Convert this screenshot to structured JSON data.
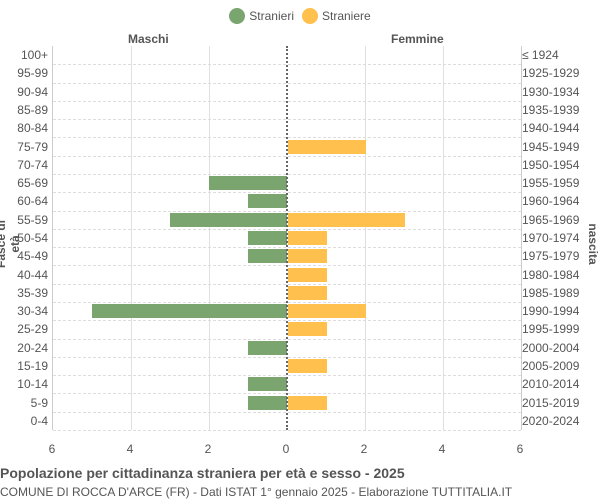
{
  "legend": [
    {
      "label": "Stranieri",
      "color": "#7ba56e"
    },
    {
      "label": "Straniere",
      "color": "#ffc04d"
    }
  ],
  "side_titles": {
    "left": "Maschi",
    "right": "Femmine"
  },
  "axis_titles": {
    "left": "Fasce di età",
    "right": "Anni di nascita"
  },
  "x_ticks": [
    "6",
    "4",
    "2",
    "0",
    "2",
    "4",
    "6"
  ],
  "footer": {
    "title": "Popolazione per cittadinanza straniera per età e sesso - 2025",
    "subtitle": "COMUNE DI ROCCA D'ARCE (FR) - Dati ISTAT 1° gennaio 2025 - Elaborazione TUTTITALIA.IT"
  },
  "chart_data": {
    "type": "bar",
    "orientation": "horizontal-pyramid",
    "title": "Popolazione per cittadinanza straniera per età e sesso - 2025",
    "subtitle": "COMUNE DI ROCCA D'ARCE (FR) - Dati ISTAT 1° gennaio 2025 - Elaborazione TUTTITALIA.IT",
    "xlabel": "",
    "ylabel_left": "Fasce di età",
    "ylabel_right": "Anni di nascita",
    "xlim": [
      -6,
      6
    ],
    "x_ticks": [
      6,
      4,
      2,
      0,
      2,
      4,
      6
    ],
    "grid": true,
    "legend_position": "top",
    "categories": [
      "100+",
      "95-99",
      "90-94",
      "85-89",
      "80-84",
      "75-79",
      "70-74",
      "65-69",
      "60-64",
      "55-59",
      "50-54",
      "45-49",
      "40-44",
      "35-39",
      "30-34",
      "25-29",
      "20-24",
      "15-19",
      "10-14",
      "5-9",
      "0-4"
    ],
    "birth_years": [
      "≤ 1924",
      "1925-1929",
      "1930-1934",
      "1935-1939",
      "1940-1944",
      "1945-1949",
      "1950-1954",
      "1955-1959",
      "1960-1964",
      "1965-1969",
      "1970-1974",
      "1975-1979",
      "1980-1984",
      "1985-1989",
      "1990-1994",
      "1995-1999",
      "2000-2004",
      "2005-2009",
      "2010-2014",
      "2015-2019",
      "2020-2024"
    ],
    "series": [
      {
        "name": "Stranieri",
        "side": "Maschi",
        "color": "#7ba56e",
        "values": [
          0,
          0,
          0,
          0,
          0,
          0,
          0,
          2,
          1,
          3,
          1,
          1,
          0,
          0,
          5,
          0,
          1,
          0,
          1,
          1,
          0
        ]
      },
      {
        "name": "Straniere",
        "side": "Femmine",
        "color": "#ffc04d",
        "values": [
          0,
          0,
          0,
          0,
          0,
          2,
          0,
          0,
          0,
          3,
          1,
          1,
          1,
          1,
          2,
          1,
          0,
          1,
          0,
          1,
          0
        ]
      }
    ]
  }
}
